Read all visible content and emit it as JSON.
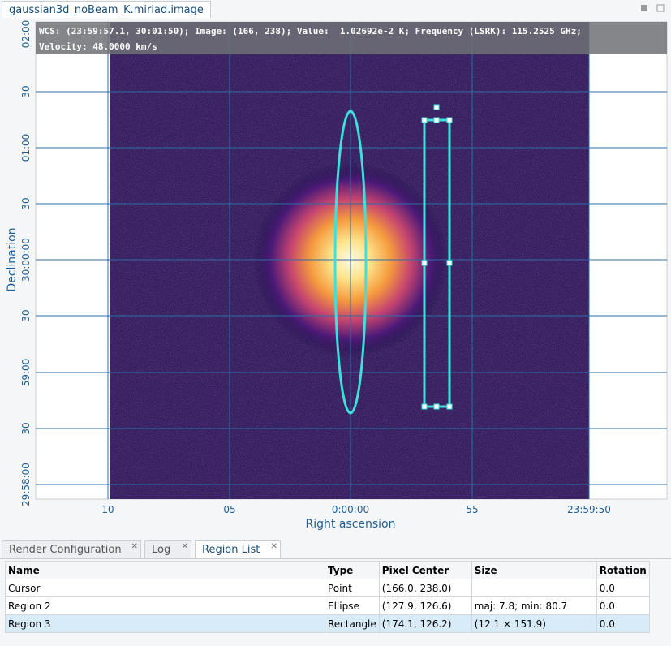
{
  "image_tab": {
    "title": "gaussian3d_noBeam_K.miriad.image"
  },
  "overlay": {
    "line1": "WCS: (23:59:57.1, 30:01:50); Image: (166, 238); Value:  1.02692e-2 K; Frequency (LSRK): 115.2525 GHz;",
    "line2": "Velocity: 48.0000 km/s"
  },
  "axes": {
    "y_label": "Declination",
    "x_label": "Right ascension",
    "y_ticks": [
      "02:00",
      "30",
      "01:00",
      "30",
      "30:00:00",
      "30",
      "59:00",
      "30",
      "29:58:00"
    ],
    "x_ticks": [
      "10",
      "05",
      "0:00:00",
      "55",
      "23:59:50"
    ]
  },
  "bottom_tabs": [
    "Render Configuration",
    "Log",
    "Region List"
  ],
  "table": {
    "columns": [
      "Name",
      "Type",
      "Pixel Center",
      "Size",
      "Rotation"
    ],
    "rows": [
      [
        "Cursor",
        "Point",
        "(166.0, 238.0)",
        null,
        "0.0"
      ],
      [
        "Region 2",
        "Ellipse",
        "(127.9, 126.6)",
        "maj: 7.8; min: 80.7",
        "0.0"
      ],
      [
        "Region 3",
        "Rectangle",
        "(174.1, 126.2)",
        "(12.1 × 151.9)",
        "0.0"
      ]
    ]
  }
}
